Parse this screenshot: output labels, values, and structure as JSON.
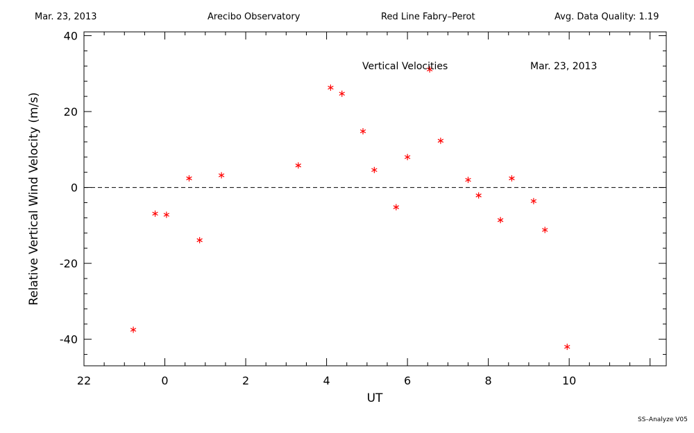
{
  "header": {
    "date": "Mar. 23, 2013",
    "observatory": "Arecibo Observatory",
    "instrument": "Red Line Fabry–Perot",
    "quality": "Avg. Data Quality: 1.19"
  },
  "footer": "SS–Analyze V05",
  "chart_data": {
    "type": "scatter",
    "title": "Vertical Velocities",
    "subtitle": "Mar. 23, 2013",
    "xlabel": "UT",
    "ylabel": "Relative Vertical Wind Velocity (m/s)",
    "xlim": [
      -2.0,
      12.4
    ],
    "ylim": [
      -47,
      41
    ],
    "x_ticks": [
      22,
      0,
      2,
      4,
      6,
      8,
      10
    ],
    "y_ticks": [
      -40,
      -20,
      0,
      20,
      40
    ],
    "reference_line": 0,
    "marker_color": "#ff0000",
    "x": [
      -0.78,
      -0.24,
      0.04,
      0.6,
      0.86,
      1.4,
      3.3,
      4.1,
      4.38,
      4.9,
      5.18,
      5.72,
      6.0,
      6.55,
      6.82,
      7.5,
      7.76,
      8.3,
      8.58,
      9.12,
      9.4,
      9.95
    ],
    "y": [
      -37.5,
      -6.9,
      -7.2,
      2.4,
      -13.9,
      3.2,
      5.8,
      26.3,
      24.7,
      14.8,
      4.6,
      -5.2,
      8.0,
      31.1,
      12.3,
      2.0,
      -2.1,
      -8.6,
      2.4,
      -3.6,
      -11.2,
      -42.0
    ]
  }
}
